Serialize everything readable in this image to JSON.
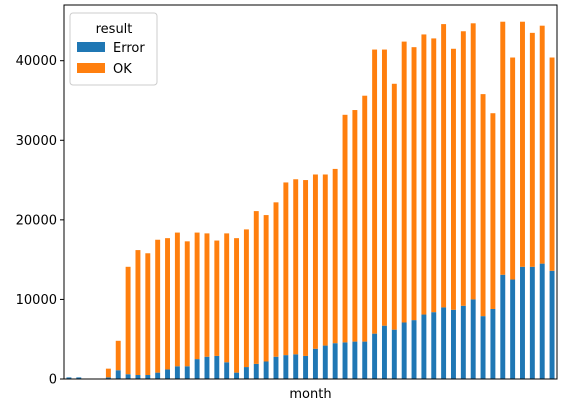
{
  "chart_data": {
    "type": "bar",
    "stacked": true,
    "xlabel": "month",
    "ylabel": "",
    "ylim": [
      0,
      47000
    ],
    "yticks": [
      0,
      10000,
      20000,
      30000,
      40000
    ],
    "show_x_tick_labels": false,
    "grid": false,
    "legend": {
      "title": "result",
      "placement": "top-left"
    },
    "colors": {
      "Error": "#1f77b4",
      "OK": "#ff7f0e"
    },
    "series": [
      {
        "name": "Error",
        "values": [
          200,
          200,
          0,
          0,
          200,
          1100,
          600,
          500,
          500,
          800,
          1200,
          1600,
          1600,
          2500,
          2800,
          2900,
          2100,
          800,
          1500,
          1900,
          2200,
          2800,
          3000,
          3100,
          2900,
          3800,
          4200,
          4500,
          4600,
          4700,
          4700,
          5700,
          6700,
          6200,
          7100,
          7400,
          8100,
          8400,
          9000,
          8700,
          9200,
          10000,
          7900,
          8800,
          13100,
          12500,
          14100,
          14100,
          14500,
          13600
        ]
      },
      {
        "name": "OK",
        "values": [
          0,
          0,
          0,
          0,
          1100,
          3700,
          13500,
          15700,
          15300,
          16700,
          16500,
          16800,
          15700,
          15900,
          15500,
          14500,
          16200,
          16900,
          17300,
          19200,
          18400,
          19400,
          21700,
          22000,
          22100,
          21900,
          21500,
          21900,
          28600,
          29100,
          30900,
          35700,
          34700,
          30900,
          35300,
          34300,
          35200,
          34400,
          35600,
          32800,
          34500,
          34700,
          27900,
          24600,
          31800,
          27900,
          30800,
          29400,
          29900,
          26800
        ]
      }
    ]
  }
}
